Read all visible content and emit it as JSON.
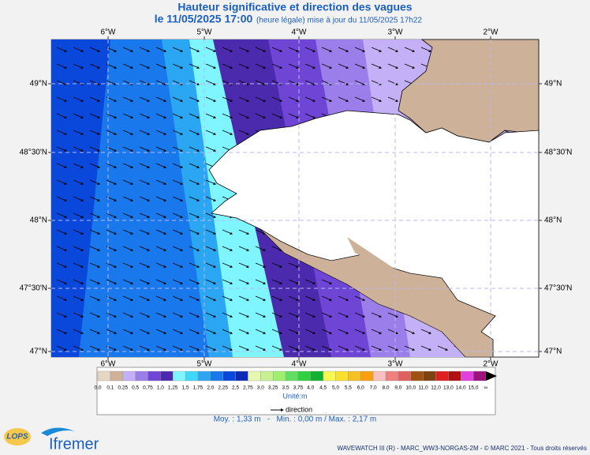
{
  "header": {
    "title": "Hauteur significative et direction des vagues",
    "date": "le 11/05/2025 17:00",
    "note": "(heure légale) mise à jour du 11/05/2025 17h22"
  },
  "axes": {
    "lon_labels": [
      "6°W",
      "5°W",
      "4°W",
      "3°W",
      "2°W"
    ],
    "lat_labels": [
      "49°N",
      "48°30'N",
      "48°N",
      "47°30'N",
      "47°N"
    ]
  },
  "legend": {
    "labels": [
      "0,0",
      "0,1",
      "0,25",
      "0,5",
      "0,75",
      "1,0",
      "1,25",
      "1,5",
      "1,75",
      "2,0",
      "2,25",
      "2,5",
      "2,75",
      "3,0",
      "3,25",
      "3,5",
      "3,75",
      "4,0",
      "4,5",
      "5,0",
      "5,5",
      "6,0",
      "7,0",
      "8,0",
      "9,0",
      "10,0",
      "11,0",
      "12,0",
      "13,0",
      "14,0",
      "15,0",
      "∞"
    ],
    "colors": [
      "#e6d6c6",
      "#cdb199",
      "#c4b0f6",
      "#9c7eea",
      "#6f45d6",
      "#4b2aae",
      "#7ff6ff",
      "#3fd8f8",
      "#2aa6f2",
      "#1878ec",
      "#0a48dc",
      "#0a2ab8",
      "#e6f8b0",
      "#c8f090",
      "#a0f070",
      "#60e060",
      "#30d040",
      "#10b030",
      "#f8f850",
      "#f8e030",
      "#f8c020",
      "#f8a010",
      "#f8c0c0",
      "#f08080",
      "#e06060",
      "#a05010",
      "#804010",
      "#e02020",
      "#b01010",
      "#e040e0",
      "#a01080"
    ],
    "unit": "Unité:m",
    "direction": "direction"
  },
  "stats": "Moy. : 1,33 m   -   Min. : 0,00 m / Max. : 2,17 m",
  "footer": {
    "lops": "LOPS",
    "ifremer": "Ifremer",
    "credit": "WAVEWATCH III (R) - MARC_WW3-NORGAS-2M - © MARC 2021 - Tous droits réservés"
  }
}
